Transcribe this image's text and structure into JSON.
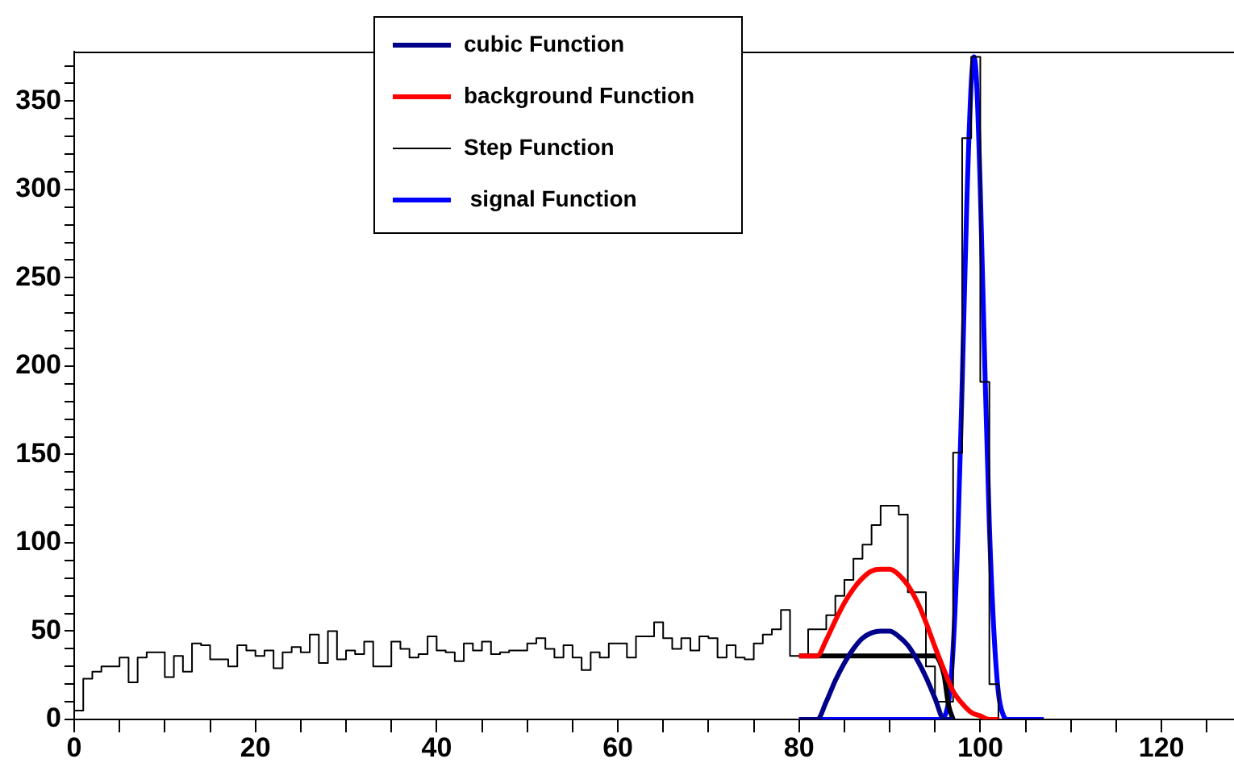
{
  "chart_data": {
    "type": "histogram",
    "xlim": [
      0,
      128
    ],
    "ylim": [
      0,
      378
    ],
    "xticks": [
      0,
      {
        "value": 5,
        "label": null
      },
      {
        "value": 10,
        "label": null
      },
      {
        "value": 15,
        "label": null
      },
      20,
      {
        "value": 25,
        "label": null
      },
      {
        "value": 30,
        "label": null
      },
      {
        "value": 35,
        "label": null
      },
      40,
      {
        "value": 45,
        "label": null
      },
      {
        "value": 50,
        "label": null
      },
      {
        "value": 55,
        "label": null
      },
      60,
      {
        "value": 65,
        "label": null
      },
      {
        "value": 70,
        "label": null
      },
      {
        "value": 75,
        "label": null
      },
      80,
      {
        "value": 85,
        "label": null
      },
      {
        "value": 90,
        "label": null
      },
      {
        "value": 95,
        "label": null
      },
      100,
      {
        "value": 105,
        "label": null
      },
      {
        "value": 110,
        "label": null
      },
      {
        "value": 115,
        "label": null
      },
      120,
      {
        "value": 125,
        "label": null
      }
    ],
    "yticks": [
      0,
      {
        "value": 10,
        "label": null
      },
      {
        "value": 20,
        "label": null
      },
      {
        "value": 30,
        "label": null
      },
      {
        "value": 40,
        "label": null
      },
      50,
      {
        "value": 60,
        "label": null
      },
      {
        "value": 70,
        "label": null
      },
      {
        "value": 80,
        "label": null
      },
      {
        "value": 90,
        "label": null
      },
      100,
      {
        "value": 110,
        "label": null
      },
      {
        "value": 120,
        "label": null
      },
      {
        "value": 130,
        "label": null
      },
      {
        "value": 140,
        "label": null
      },
      150,
      {
        "value": 160,
        "label": null
      },
      {
        "value": 170,
        "label": null
      },
      {
        "value": 180,
        "label": null
      },
      {
        "value": 190,
        "label": null
      },
      200,
      {
        "value": 210,
        "label": null
      },
      {
        "value": 220,
        "label": null
      },
      {
        "value": 230,
        "label": null
      },
      {
        "value": 240,
        "label": null
      },
      250,
      {
        "value": 260,
        "label": null
      },
      {
        "value": 270,
        "label": null
      },
      {
        "value": 280,
        "label": null
      },
      {
        "value": 290,
        "label": null
      },
      300,
      {
        "value": 310,
        "label": null
      },
      {
        "value": 320,
        "label": null
      },
      {
        "value": 330,
        "label": null
      },
      {
        "value": 340,
        "label": null
      },
      350,
      {
        "value": 360,
        "label": null
      },
      {
        "value": 370,
        "label": null
      }
    ],
    "grid": false,
    "legend": "top",
    "marker": "none",
    "bins": [
      0,
      1,
      2,
      3,
      4,
      5,
      6,
      7,
      8,
      9,
      10,
      11,
      12,
      13,
      14,
      15,
      16,
      17,
      18,
      19,
      20,
      21,
      22,
      23,
      24,
      25,
      26,
      27,
      28,
      29,
      30,
      31,
      32,
      33,
      34,
      35,
      36,
      37,
      38,
      39,
      40,
      41,
      42,
      43,
      44,
      45,
      46,
      47,
      48,
      49,
      50,
      51,
      52,
      53,
      54,
      55,
      56,
      57,
      58,
      59,
      60,
      61,
      62,
      63,
      64,
      65,
      66,
      67,
      68,
      69,
      70,
      71,
      72,
      73,
      74,
      75,
      76,
      77,
      78,
      79,
      80,
      81,
      82,
      83,
      84,
      85,
      86,
      87,
      88,
      89,
      90,
      91,
      92,
      93,
      94,
      95,
      96,
      97,
      98,
      99,
      100,
      101,
      102,
      103,
      104,
      105,
      106,
      107,
      108,
      109,
      110,
      111,
      112,
      113,
      114,
      115,
      116,
      117,
      118,
      119,
      120,
      121,
      122,
      123,
      124,
      125,
      126,
      127,
      128
    ],
    "series": [
      {
        "name": "cubic Function",
        "type": "line",
        "color": "#00008b",
        "x": [
          80,
          82,
          83,
          84,
          85,
          86,
          87,
          88,
          89,
          90,
          91,
          92,
          93,
          94,
          95,
          96,
          97
        ],
        "values": [
          0,
          0,
          10,
          22,
          32,
          40,
          46,
          49,
          50,
          50,
          47,
          42,
          34,
          24,
          12,
          0,
          0
        ]
      },
      {
        "name": "background Function",
        "type": "line",
        "color": "#ff0000",
        "x": [
          80,
          82,
          83,
          84,
          85,
          86,
          87,
          88,
          89,
          90,
          91,
          92,
          93,
          94,
          95,
          96,
          97,
          98,
          99,
          100,
          101,
          102
        ],
        "values": [
          36,
          36,
          45,
          56,
          66,
          74,
          80,
          84,
          85,
          85,
          82,
          76,
          67,
          55,
          41,
          28,
          16,
          9,
          4,
          2,
          0,
          0
        ]
      },
      {
        "name": "Step Function",
        "type": "histogram",
        "color": "#000000",
        "values": [
          5,
          23,
          27,
          30,
          30,
          35,
          21,
          35,
          38,
          38,
          24,
          36,
          27,
          43,
          42,
          34,
          34,
          30,
          42,
          39,
          36,
          39,
          29,
          38,
          41,
          38,
          48,
          32,
          50,
          34,
          39,
          37,
          44,
          30,
          30,
          44,
          40,
          35,
          37,
          47,
          39,
          38,
          33,
          43,
          39,
          44,
          37,
          38,
          39,
          39,
          43,
          46,
          40,
          35,
          42,
          35,
          28,
          38,
          35,
          43,
          43,
          35,
          47,
          47,
          55,
          46,
          40,
          46,
          39,
          47,
          46,
          35,
          42,
          35,
          34,
          43,
          48,
          51,
          62,
          36,
          36,
          51,
          51,
          59,
          70,
          79,
          91,
          99,
          110,
          121,
          121,
          116,
          72,
          72,
          30,
          10,
          10,
          151,
          329,
          375,
          191,
          20,
          0,
          0,
          0,
          0,
          0,
          0,
          0,
          0,
          0,
          0,
          0,
          0,
          0,
          0,
          0,
          0,
          0,
          0,
          0,
          0,
          0,
          0,
          0,
          0,
          0,
          0
        ]
      },
      {
        "type": "line",
        "color": "#000000",
        "x": [
          80,
          95,
          95.5,
          96,
          96.5,
          97
        ],
        "values": [
          36,
          36,
          33,
          25,
          8,
          0
        ]
      },
      {
        "name": " signal Function",
        "type": "line",
        "color": "#0000ff",
        "x": [
          80,
          95.5,
          96.5,
          97,
          97.5,
          98,
          98.5,
          99,
          99.3,
          99.6,
          100,
          100.5,
          101,
          101.5,
          102,
          102.5,
          103,
          107
        ],
        "values": [
          0,
          0,
          10,
          40,
          100,
          190,
          290,
          360,
          375,
          360,
          300,
          200,
          110,
          50,
          15,
          3,
          0,
          0
        ]
      }
    ]
  }
}
